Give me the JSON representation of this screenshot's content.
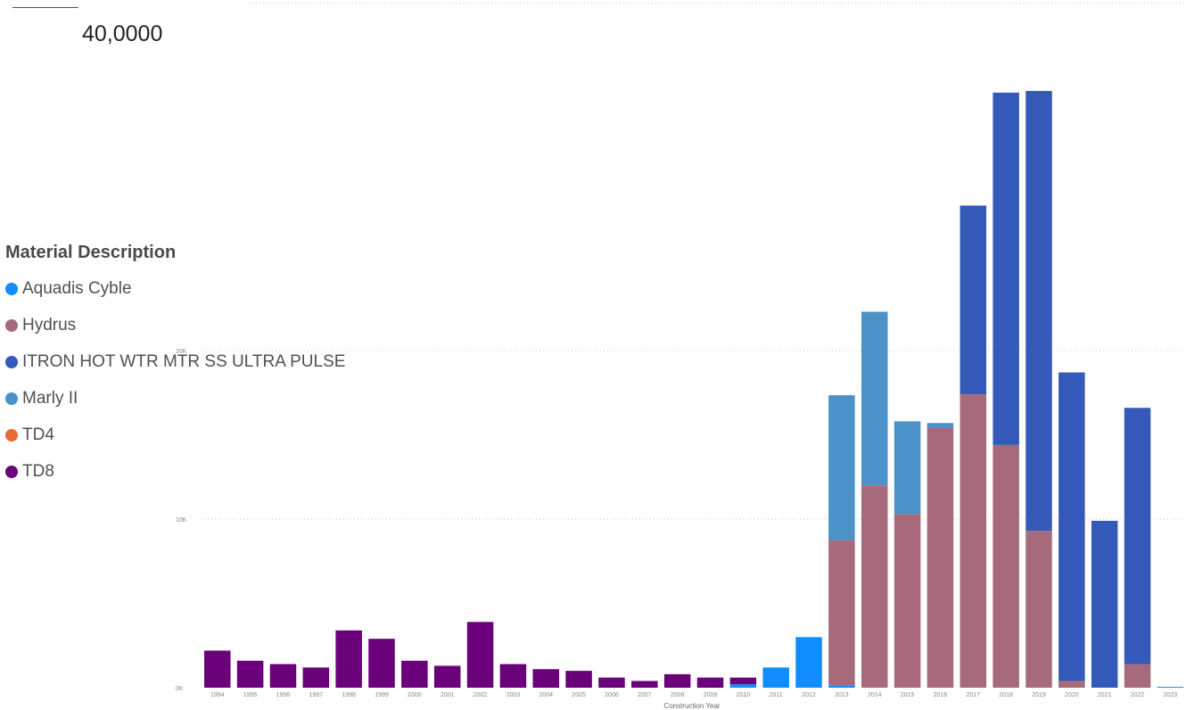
{
  "header": {
    "value_label": "40,0000"
  },
  "legend": {
    "title": "Material Description",
    "items": [
      {
        "label": "Aquadis Cyble",
        "color": "#118dff"
      },
      {
        "label": "Hydrus",
        "color": "#a66a7a"
      },
      {
        "label": "ITRON HOT WTR MTR SS ULTRA PULSE",
        "color": "#3559b9"
      },
      {
        "label": "Marly II",
        "color": "#4a92c7"
      },
      {
        "label": "TD4",
        "color": "#e66c37"
      },
      {
        "label": "TD8",
        "color": "#6b007b"
      }
    ]
  },
  "chart_data": {
    "type": "bar",
    "stacked": true,
    "xlabel": "Construction Year",
    "ylabel": "",
    "ylim": [
      0,
      35
    ],
    "y_ticks": [
      "0K",
      "10K",
      "20K"
    ],
    "categories": [
      "1994",
      "1995",
      "1996",
      "1997",
      "1998",
      "1999",
      "2000",
      "2001",
      "2002",
      "2003",
      "2004",
      "2005",
      "2006",
      "2007",
      "2008",
      "2009",
      "2010",
      "2011",
      "2012",
      "2013",
      "2014",
      "2015",
      "2016",
      "2017",
      "2018",
      "2019",
      "2020",
      "2021",
      "2022",
      "2023"
    ],
    "series": [
      {
        "name": "Aquadis Cyble",
        "color": "#118dff",
        "values": [
          0,
          0,
          0,
          0,
          0,
          0,
          0,
          0,
          0,
          0,
          0,
          0,
          0,
          0,
          0,
          0,
          0.2,
          1.2,
          3.0,
          0.15,
          0,
          0,
          0,
          0,
          0,
          0,
          0,
          0,
          0,
          0.05
        ]
      },
      {
        "name": "Hydrus",
        "color": "#a66a7a",
        "values": [
          0,
          0,
          0,
          0,
          0,
          0,
          0,
          0,
          0,
          0,
          0,
          0,
          0,
          0,
          0,
          0,
          0,
          0,
          0,
          8.6,
          12.0,
          10.3,
          15.4,
          17.4,
          14.4,
          9.3,
          0.4,
          0,
          1.4,
          0
        ]
      },
      {
        "name": "ITRON HOT WTR MTR SS ULTRA PULSE",
        "color": "#3559b9",
        "values": [
          0,
          0,
          0,
          0,
          0,
          0,
          0,
          0,
          0,
          0,
          0,
          0,
          0,
          0,
          0,
          0,
          0,
          0,
          0,
          0,
          0,
          0,
          0,
          11.2,
          20.9,
          26.1,
          18.3,
          9.9,
          15.2,
          0
        ]
      },
      {
        "name": "Marly II",
        "color": "#4a92c7",
        "values": [
          0,
          0,
          0,
          0,
          0,
          0,
          0,
          0,
          0,
          0,
          0,
          0,
          0,
          0,
          0,
          0,
          0,
          0,
          0,
          8.6,
          10.3,
          5.5,
          0.3,
          0,
          0,
          0,
          0,
          0,
          0,
          0
        ]
      },
      {
        "name": "TD4",
        "color": "#e66c37",
        "values": [
          0,
          0,
          0,
          0,
          0,
          0,
          0,
          0,
          0,
          0,
          0,
          0,
          0,
          0,
          0,
          0,
          0,
          0,
          0,
          0,
          0,
          0,
          0,
          0,
          0,
          0,
          0,
          0,
          0,
          0
        ]
      },
      {
        "name": "TD8",
        "color": "#6b007b",
        "values": [
          2.2,
          1.6,
          1.4,
          1.2,
          3.4,
          2.9,
          1.6,
          1.3,
          3.9,
          1.4,
          1.1,
          1.0,
          0.6,
          0.4,
          0.8,
          0.6,
          0.4,
          0,
          0,
          0,
          0,
          0,
          0,
          0,
          0,
          0,
          0,
          0,
          0,
          0
        ]
      }
    ]
  }
}
